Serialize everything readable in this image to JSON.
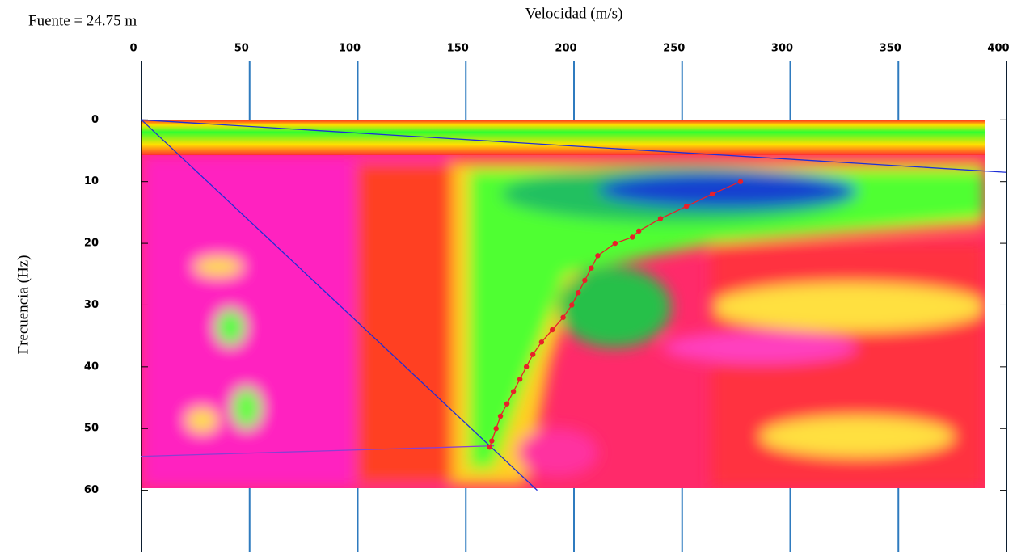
{
  "chart_data": {
    "type": "dispersion",
    "annotation": "Fuente = 24.75 m",
    "x_label": "Velocidad (m/s)",
    "y_label": "Frecuencia (Hz)",
    "xlim": [
      0,
      400
    ],
    "ylim": [
      -9.6,
      70
    ],
    "xticks": [
      0,
      50,
      100,
      150,
      200,
      250,
      300,
      350,
      400
    ],
    "yticks": [
      0,
      10,
      20,
      30,
      40,
      50,
      60
    ],
    "y_inverted": true,
    "grid_color": "#2f7bbf",
    "series": [
      {
        "color": "#e8202a",
        "x": [
          277,
          264,
          252,
          240,
          230,
          227,
          219,
          211,
          208,
          205,
          202,
          199,
          195,
          190,
          185,
          181,
          178,
          175,
          172,
          169,
          166,
          164,
          162,
          161
        ],
        "values": [
          10,
          12,
          14,
          16,
          18,
          19,
          20,
          22,
          24,
          26,
          28,
          30,
          32,
          34,
          36,
          38,
          40,
          42,
          44,
          46,
          48,
          50,
          52,
          53
        ]
      }
    ],
    "lines": [
      {
        "color": "#1f2fd6",
        "x": [
          0,
          183
        ],
        "values": [
          0,
          60
        ]
      },
      {
        "color": "#1f2fd6",
        "x": [
          0,
          400
        ],
        "values": [
          0,
          8.5
        ]
      },
      {
        "color": "#8a3fd0",
        "x": [
          0,
          163
        ],
        "values": [
          54.5,
          52.8
        ]
      }
    ]
  }
}
